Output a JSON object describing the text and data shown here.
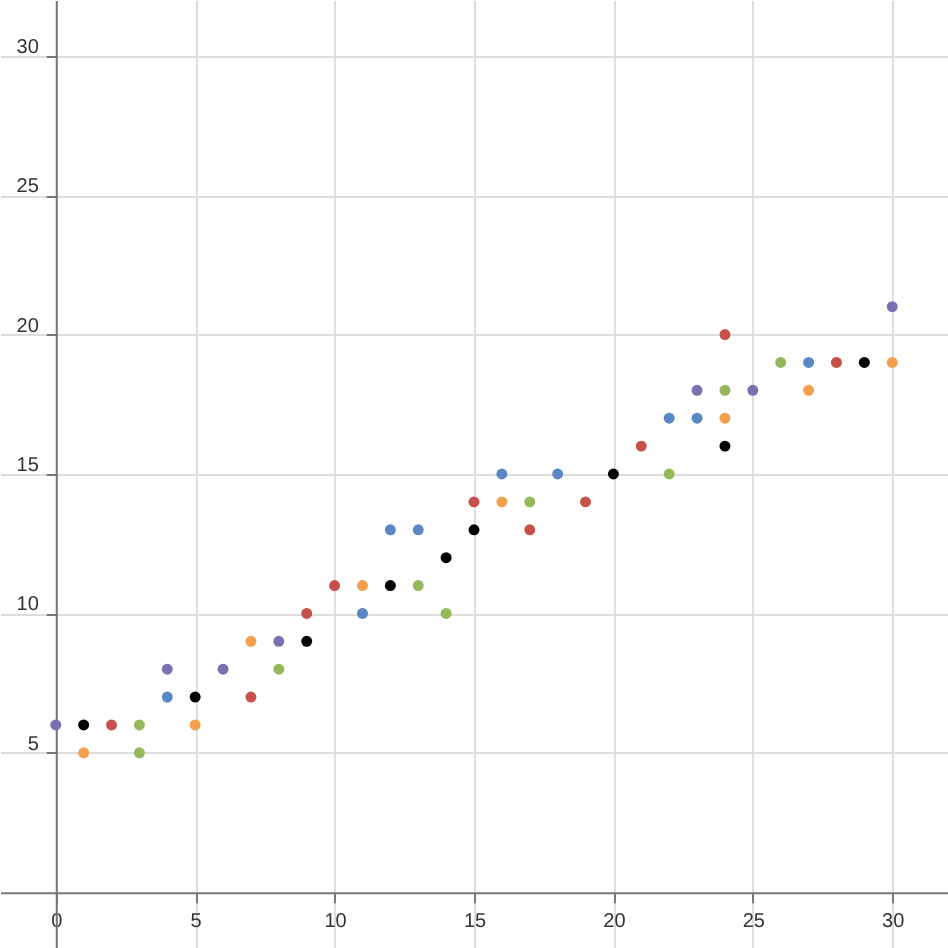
{
  "chart_data": {
    "type": "scatter",
    "xlim": [
      -2,
      32
    ],
    "ylim": [
      -2,
      32
    ],
    "xticks": [
      0,
      5,
      10,
      15,
      20,
      25,
      30
    ],
    "yticks": [
      5,
      10,
      15,
      20,
      25,
      30
    ],
    "grid": true,
    "marker": "circle",
    "series": [
      {
        "color": "#7b6fb0",
        "x": [
          0,
          4,
          6,
          8,
          23,
          25,
          30
        ],
        "values": [
          6,
          8,
          8,
          9,
          18,
          18,
          21
        ]
      },
      {
        "color": "#5b87c4",
        "x": [
          4,
          11,
          12,
          13,
          16,
          18,
          22,
          23,
          27
        ],
        "values": [
          7,
          10,
          13,
          13,
          15,
          15,
          17,
          17,
          19
        ]
      },
      {
        "color": "#000000",
        "x": [
          1,
          5,
          9,
          12,
          14,
          15,
          20,
          24,
          29
        ],
        "values": [
          6,
          7,
          9,
          11,
          12,
          13,
          15,
          16,
          19
        ]
      },
      {
        "color": "#c7504b",
        "x": [
          2,
          7,
          9,
          10,
          15,
          17,
          19,
          21,
          24,
          28
        ],
        "values": [
          6,
          7,
          10,
          11,
          14,
          13,
          14,
          16,
          20,
          19
        ]
      },
      {
        "color": "#94b85a",
        "x": [
          3,
          3,
          8,
          13,
          14,
          17,
          22,
          24,
          26
        ],
        "values": [
          6,
          5,
          8,
          11,
          10,
          14,
          15,
          18,
          19
        ]
      },
      {
        "color": "#f2a04e",
        "x": [
          1,
          5,
          7,
          11,
          16,
          24,
          27,
          30
        ],
        "values": [
          5,
          6,
          9,
          11,
          14,
          17,
          18,
          19
        ]
      }
    ]
  }
}
